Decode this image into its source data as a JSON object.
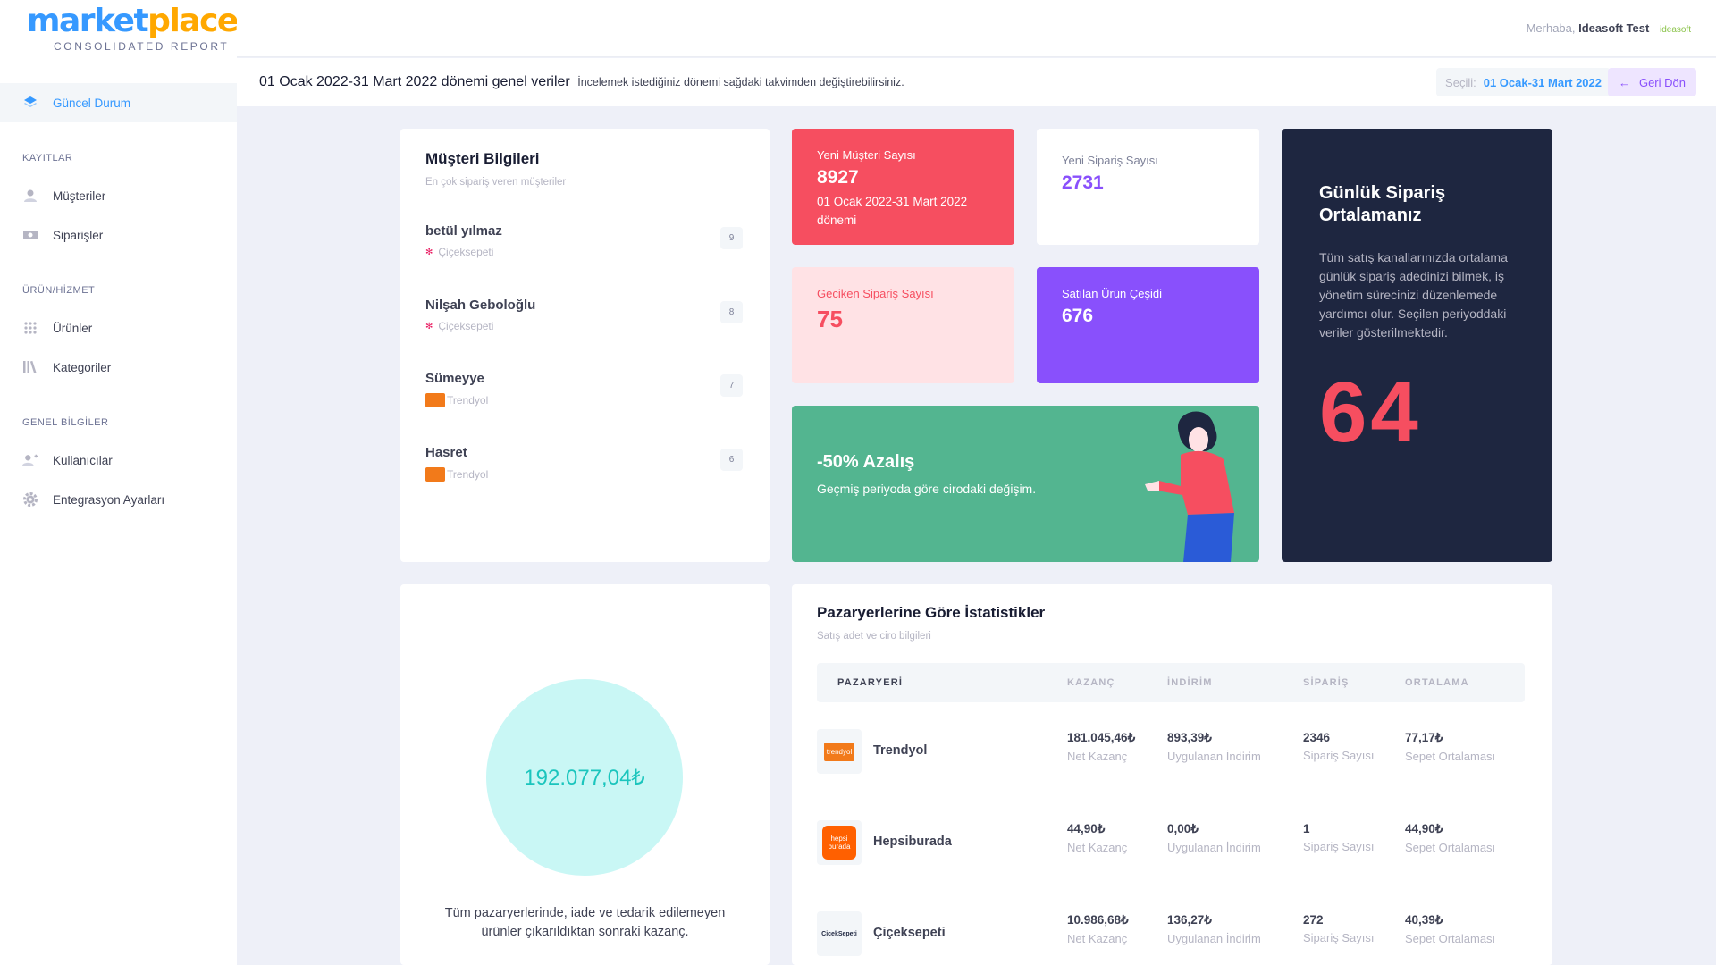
{
  "brand": {
    "logo_main": "market",
    "logo_accent": "place",
    "subtitle": "CONSOLIDATED REPORT"
  },
  "header": {
    "greeting": "Merhaba,",
    "user": "Ideasoft Test",
    "company_logo": "ideasoft"
  },
  "sidebar": {
    "active": {
      "label": "Güncel Durum",
      "icon": "layers-icon"
    },
    "sections": [
      {
        "title": "KAYITLAR",
        "items": [
          {
            "label": "Müşteriler",
            "icon": "user-icon"
          },
          {
            "label": "Siparişler",
            "icon": "cash-icon"
          }
        ]
      },
      {
        "title": "ÜRÜN/HİZMET",
        "items": [
          {
            "label": "Ürünler",
            "icon": "grid-icon"
          },
          {
            "label": "Kategoriler",
            "icon": "library-icon"
          }
        ]
      },
      {
        "title": "GENEL BİLGİLER",
        "items": [
          {
            "label": "Kullanıcılar",
            "icon": "add-user-icon"
          },
          {
            "label": "Entegrasyon Ayarları",
            "icon": "gear-icon"
          }
        ]
      }
    ]
  },
  "subheader": {
    "title": "01 Ocak 2022-31 Mart 2022 dönemi genel veriler",
    "description": "İncelemek istediğiniz dönemi sağdaki takvimden değiştirebilirsiniz.",
    "selected_label": "Seçili:",
    "selected_value": "01 Ocak-31 Mart 2022",
    "back_label": "Geri Dön"
  },
  "customers": {
    "title": "Müşteri Bilgileri",
    "subtitle": "En çok sipariş veren müşteriler",
    "items": [
      {
        "name": "betül yılmaz",
        "source": "Çiçeksepeti",
        "count": "9"
      },
      {
        "name": "Nilşah Geboloğlu",
        "source": "Çiçeksepeti",
        "count": "8"
      },
      {
        "name": "Sümeyye",
        "source": "Trendyol",
        "count": "7"
      },
      {
        "name": "Hasret",
        "source": "Trendyol",
        "count": "6"
      }
    ]
  },
  "stats": {
    "new_customers": {
      "label": "Yeni Müşteri Sayısı",
      "value": "8927",
      "detail": "01 Ocak 2022-31 Mart 2022 dönemi"
    },
    "new_orders": {
      "label": "Yeni Sipariş Sayısı",
      "value": "2731"
    },
    "late_orders": {
      "label": "Geciken Sipariş Sayısı",
      "value": "75"
    },
    "product_variety": {
      "label": "Satılan Ürün Çeşidi",
      "value": "676"
    },
    "change": {
      "title": "-50% Azalış",
      "desc": "Geçmiş periyoda göre cirodaki değişim."
    },
    "daily": {
      "title": "Günlük Sipariş Ortalamanız",
      "desc": "Tüm satış kanallarınızda ortalama günlük sipariş adedinizi bilmek, iş yönetim sürecinizi düzenlemede yardımcı olur. Seçilen periyoddaki veriler gösterilmektedir.",
      "value": "64"
    }
  },
  "earnings": {
    "value": "192.077,04₺",
    "desc": "Tüm pazaryerlerinde, iade ve tedarik edilemeyen ürünler çıkarıldıktan sonraki kazanç."
  },
  "marketplaces": {
    "title": "Pazaryerlerine Göre İstatistikler",
    "subtitle": "Satış adet ve ciro bilgileri",
    "headers": [
      "PAZARYERİ",
      "KAZANÇ",
      "İNDİRİM",
      "SİPARİŞ",
      "ORTALAMA"
    ],
    "sublabels": [
      "Net Kazanç",
      "Uygulanan İndirim",
      "Sipariş Sayısı",
      "Sepet Ortalaması"
    ],
    "rows": [
      {
        "name": "Trendyol",
        "logo": "trendyol",
        "earning": "181.045,46₺",
        "discount": "893,39₺",
        "orders": "2346",
        "average": "77,17₺"
      },
      {
        "name": "Hepsiburada",
        "logo": "hepsi burada",
        "earning": "44,90₺",
        "discount": "0,00₺",
        "orders": "1",
        "average": "44,90₺"
      },
      {
        "name": "Çiçeksepeti",
        "logo": "CicekSepeti",
        "earning": "10.986,68₺",
        "discount": "136,27₺",
        "orders": "272",
        "average": "40,39₺"
      }
    ]
  },
  "colors": {
    "primary": "#3699ff",
    "danger": "#f64e60",
    "success": "#53b590",
    "purple": "#8950fc",
    "dark": "#1e2640"
  }
}
